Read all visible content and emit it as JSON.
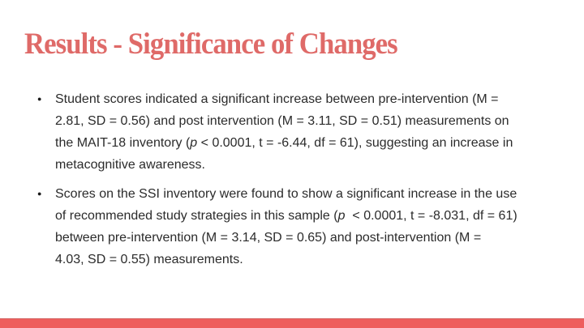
{
  "slide": {
    "title": "Results - Significance of Changes",
    "bullet_char": "●",
    "colors": {
      "title_text": "#df6a68",
      "bottom_bar": "#ee5e5d",
      "body_text": "#2b2b2b",
      "background": "#ffffff"
    },
    "bullets": {
      "b1": {
        "line1": "Student scores indicated a significant increase between pre-intervention (M =",
        "line2": "2.81, SD = 0.56) and post intervention (M = 3.11, SD = 0.51) measurements on",
        "line3_pre": "the MAIT-18 inventory (",
        "line3_italic": "p",
        "line3_post": " < 0.0001, t = -6.44, df = 61), suggesting an increase in",
        "line4": "metacognitive awareness."
      },
      "b2": {
        "line1": "Scores on the SSI inventory were found to show a significant increase in the use",
        "line2_pre": "of recommended study strategies in this sample (",
        "line2_italic": "p",
        "line2_post": "  < 0.0001, t = -8.031, df = 61)",
        "line3": "between pre-intervention (M = 3.14, SD = 0.65) and post-intervention (M =",
        "line4": "4.03, SD = 0.55) measurements."
      }
    }
  }
}
